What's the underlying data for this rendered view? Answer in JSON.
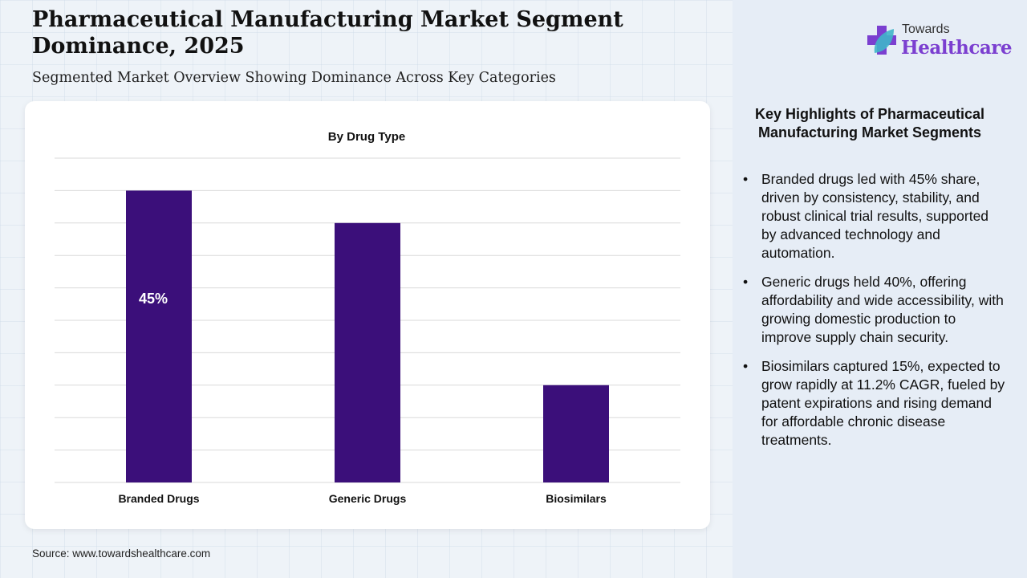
{
  "title": "Pharmaceutical Manufacturing Market Segment Dominance, 2025",
  "subtitle": "Segmented Market Overview Showing Dominance Across Key Categories",
  "source": "Source: www.towardshealthcare.com",
  "logo": {
    "line1": "Towards",
    "line2": "Healthcare"
  },
  "highlights": {
    "title": "Key Highlights of Pharmaceutical Manufacturing Market Segments",
    "items": [
      "Branded drugs led with 45% share, driven by consistency, stability, and robust clinical trial results, supported by advanced technology and automation.",
      "Generic drugs held 40%, offering affordability and wide accessibility, with growing domestic production to improve supply chain security.",
      "Biosimilars captured 15%, expected to grow rapidly at 11.2% CAGR, fueled by patent expirations and rising demand for affordable chronic disease treatments."
    ]
  },
  "chart_data": {
    "type": "bar",
    "title": "By Drug Type",
    "categories": [
      "Branded Drugs",
      "Generic Drugs",
      "Biosimilars"
    ],
    "values": [
      45,
      40,
      15
    ],
    "data_labels": [
      "45%",
      "",
      ""
    ],
    "xlabel": "",
    "ylabel": "",
    "ylim": [
      0,
      50
    ],
    "grid_step": 5,
    "grid": true,
    "bar_color": "#3b0f7a",
    "label_color": "#ffffff"
  }
}
